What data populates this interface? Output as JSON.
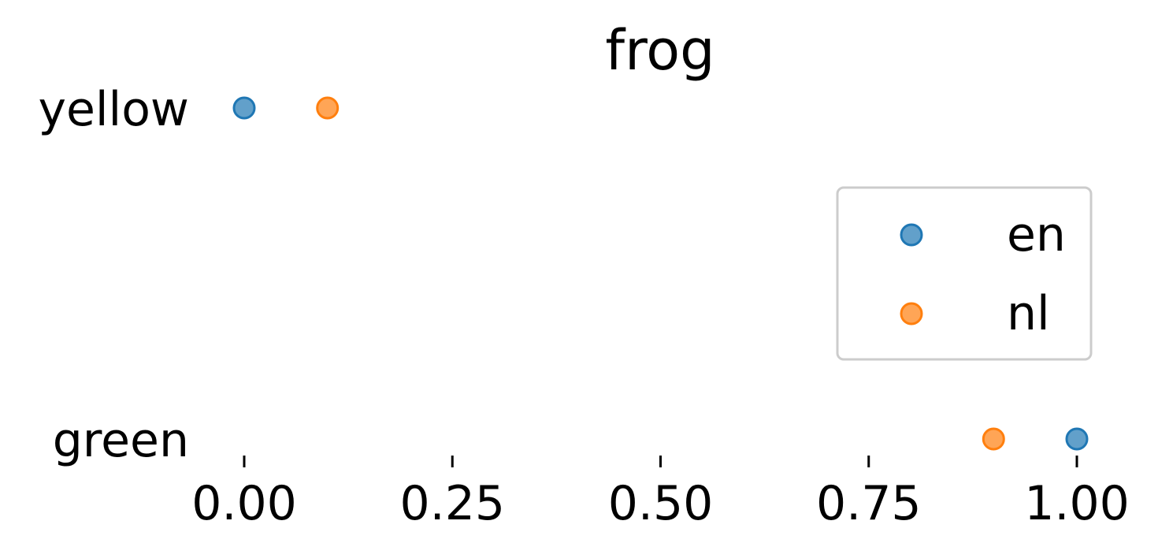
{
  "chart_data": {
    "type": "scatter",
    "title": "frog",
    "xlabel": "",
    "ylabel": "",
    "categories": [
      "yellow",
      "green"
    ],
    "xlim": [
      0,
      1
    ],
    "xticks": [
      0,
      0.25,
      0.5,
      0.75,
      1
    ],
    "xtick_labels": [
      "0.00",
      "0.25",
      "0.50",
      "0.75",
      "1.00"
    ],
    "series": [
      {
        "name": "en",
        "color": "#1f77b4",
        "values": [
          0.0,
          1.0
        ]
      },
      {
        "name": "nl",
        "color": "#ff7f0e",
        "values": [
          0.1,
          0.9
        ]
      }
    ],
    "legend": {
      "position": "center-right",
      "entries": [
        "en",
        "nl"
      ]
    },
    "grid": false
  }
}
